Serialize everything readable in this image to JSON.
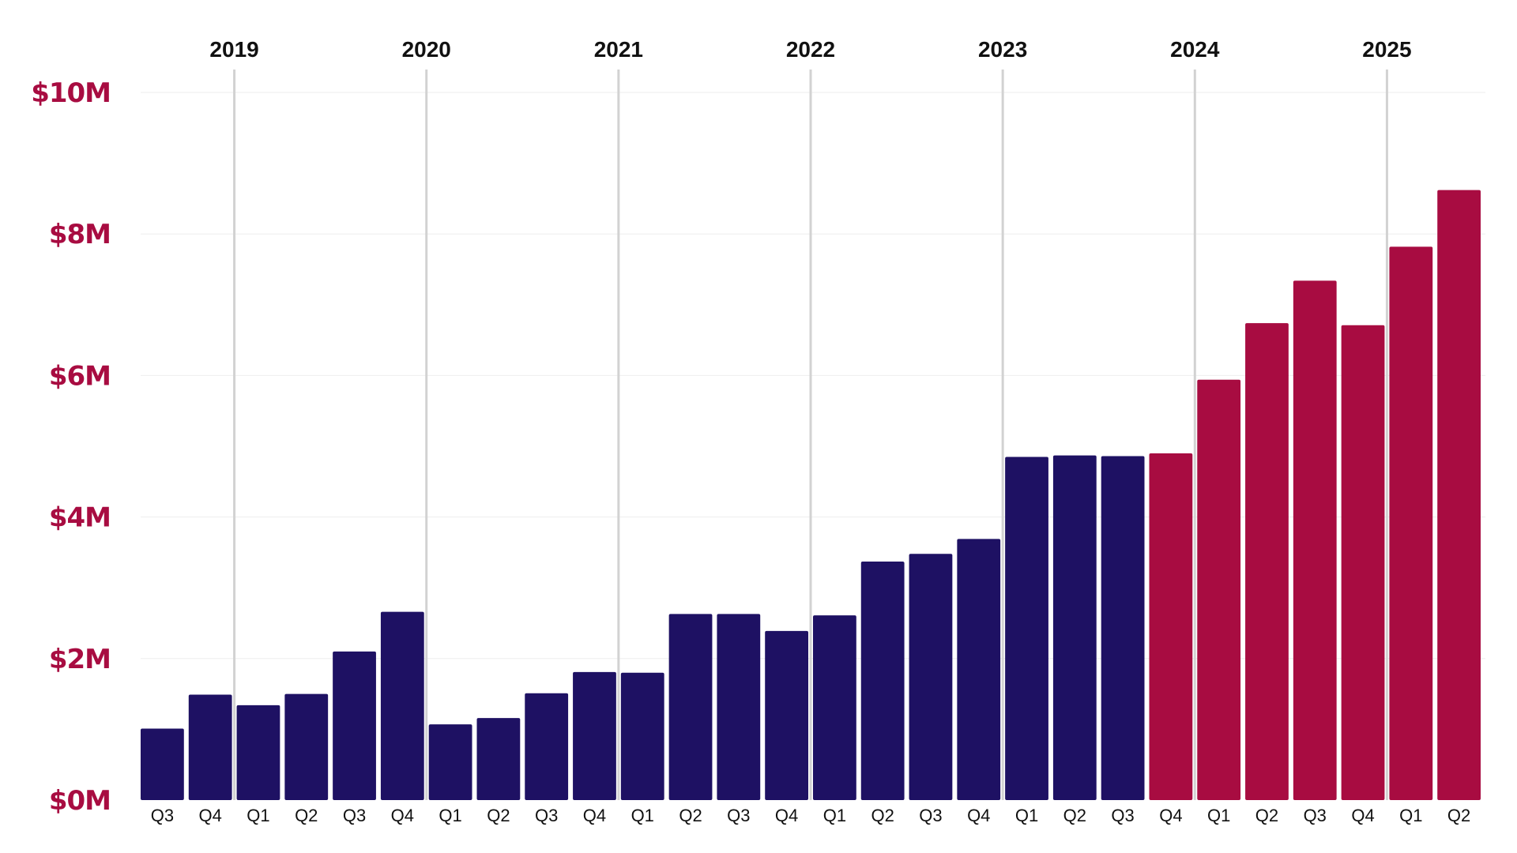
{
  "chart_data": {
    "type": "bar",
    "title": "",
    "xlabel": "",
    "ylabel": "",
    "ylim": [
      0,
      10
    ],
    "y_unit": "M",
    "y_ticks": [
      "$0M",
      "$2M",
      "$4M",
      "$6M",
      "$8M",
      "$10M"
    ],
    "y_tick_values": [
      0,
      2,
      4,
      6,
      8,
      10
    ],
    "grid": "horizontal",
    "years": [
      {
        "label": "2019",
        "boundary_after_bar": 1
      },
      {
        "label": "2020",
        "boundary_after_bar": 5
      },
      {
        "label": "2021",
        "boundary_after_bar": 9
      },
      {
        "label": "2022",
        "boundary_after_bar": 13
      },
      {
        "label": "2023",
        "boundary_after_bar": 17
      },
      {
        "label": "2024",
        "boundary_after_bar": 21
      },
      {
        "label": "2025",
        "boundary_after_bar": 25
      }
    ],
    "categories": [
      "Q3",
      "Q4",
      "Q1",
      "Q2",
      "Q3",
      "Q4",
      "Q1",
      "Q2",
      "Q3",
      "Q4",
      "Q1",
      "Q2",
      "Q3",
      "Q4",
      "Q1",
      "Q2",
      "Q3",
      "Q4",
      "Q1",
      "Q2",
      "Q3",
      "Q4",
      "Q1",
      "Q2",
      "Q3",
      "Q4",
      "Q1",
      "Q2"
    ],
    "values": [
      1.01,
      1.49,
      1.34,
      1.5,
      2.1,
      2.66,
      1.07,
      1.16,
      1.51,
      1.81,
      1.8,
      2.63,
      2.63,
      2.39,
      2.61,
      3.37,
      3.48,
      3.69,
      4.85,
      4.87,
      4.86,
      4.9,
      5.94,
      6.74,
      7.34,
      6.71,
      7.82,
      8.62
    ],
    "highlight_from_index": 21
  },
  "colors": {
    "bar_primary": "#1e1163",
    "bar_highlight": "#a80c41",
    "axis_label": "#a80c41",
    "year_line": "#d2d2d2",
    "grid": "#eeeeee",
    "text": "#111111"
  }
}
